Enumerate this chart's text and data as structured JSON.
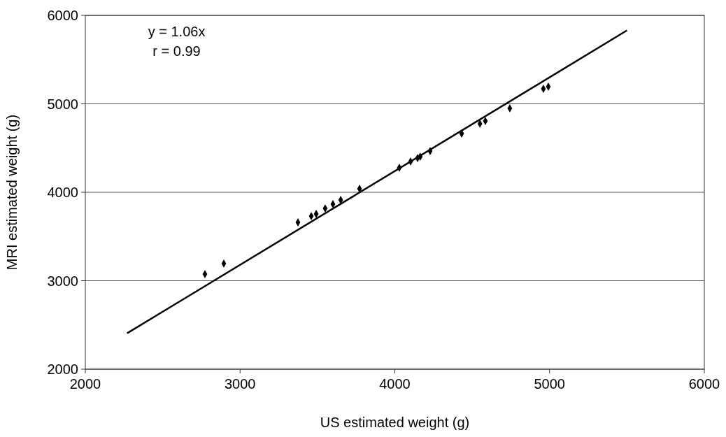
{
  "chart_data": {
    "type": "scatter",
    "xlabel": "US estimated weight (g)",
    "ylabel": "MRI estimated weight (g)",
    "xlim": [
      2000,
      6000
    ],
    "xticks": [
      2000,
      3000,
      4000,
      5000,
      6000
    ],
    "ylim": [
      2000,
      6000
    ],
    "yticks": [
      2000,
      3000,
      4000,
      5000,
      6000
    ],
    "grid": "y",
    "marker": "diamond",
    "annotations": [
      "y = 1.06x",
      "r = 0.99"
    ],
    "series": [
      {
        "color": "#000000",
        "x": [
          2773,
          2895,
          3374,
          3460,
          3492,
          3550,
          3600,
          3650,
          3772,
          4029,
          4102,
          4147,
          4164,
          4228,
          4432,
          4550,
          4585,
          4743,
          4960,
          4992
        ],
        "values": [
          3075,
          3194,
          3660,
          3731,
          3755,
          3818,
          3866,
          3913,
          4040,
          4277,
          4348,
          4387,
          4403,
          4466,
          4664,
          4775,
          4806,
          4949,
          5170,
          5194
        ]
      },
      {
        "type": "line",
        "color": "#000000",
        "marker": "none",
        "line_style": "solid",
        "x": [
          2270,
          5500
        ],
        "values": [
          2406,
          5830
        ]
      }
    ]
  }
}
